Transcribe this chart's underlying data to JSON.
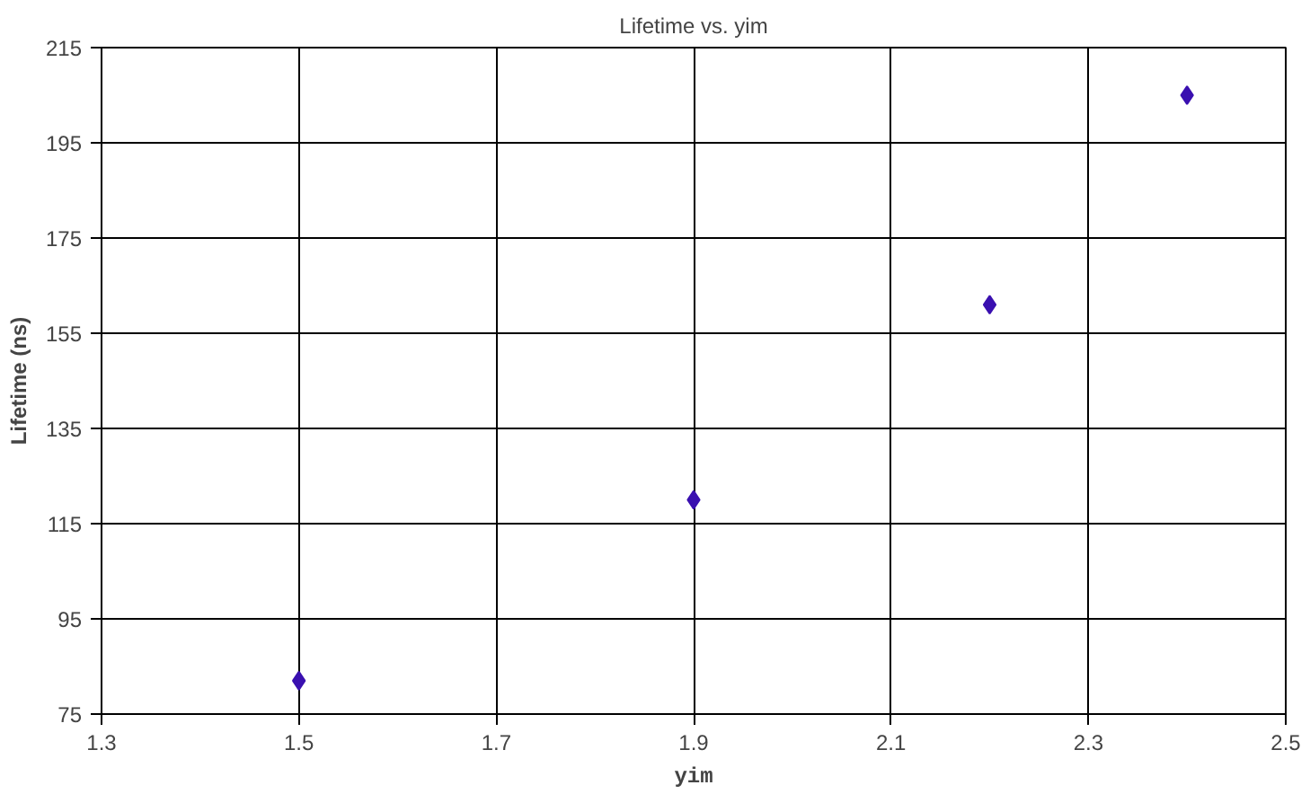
{
  "chart_data": {
    "type": "scatter",
    "title": "Lifetime vs. yim",
    "xlabel": "yim",
    "ylabel": "Lifetime (ns)",
    "x": [
      1.5,
      1.9,
      2.2,
      2.4
    ],
    "series": [
      {
        "color": "#3a10b0",
        "values": [
          82,
          120,
          161,
          205
        ]
      }
    ],
    "xlim": [
      1.3,
      2.5
    ],
    "xticks": [
      1.3,
      1.5,
      1.7,
      1.9,
      2.1,
      2.3,
      2.5
    ],
    "ylim": [
      75,
      215
    ],
    "yticks": [
      75,
      95,
      115,
      135,
      155,
      175,
      195,
      215
    ],
    "grid": true,
    "marker": "diamond"
  }
}
